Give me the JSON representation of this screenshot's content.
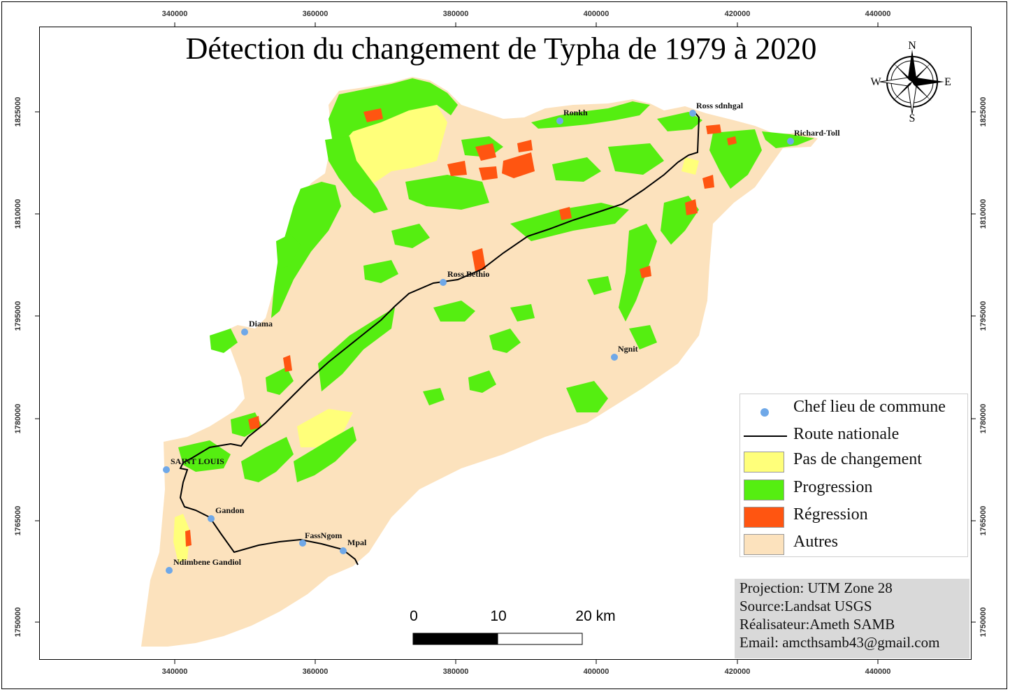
{
  "title": "Détection du changement de Typha de 1979 à 2020",
  "x_ticks": [
    "340000",
    "360000",
    "380000",
    "400000",
    "420000",
    "440000"
  ],
  "y_ticks": [
    "1825000",
    "1810000",
    "1795000",
    "1780000",
    "1765000",
    "1750000"
  ],
  "colors": {
    "pas_de_changement": "#ffff7a",
    "progression": "#55ee11",
    "regression": "#ff5511",
    "autres": "#fce2bd",
    "commune": "#6fa8e8",
    "route": "#000000"
  },
  "towns": [
    {
      "name": "Ronkh"
    },
    {
      "name": "Ross sdnhgal"
    },
    {
      "name": "Richard-Toll"
    },
    {
      "name": "Ross Bethio"
    },
    {
      "name": "Diama"
    },
    {
      "name": "Ngnit"
    },
    {
      "name": "SAINT LOUIS"
    },
    {
      "name": "Gandon"
    },
    {
      "name": "FassNgom"
    },
    {
      "name": "Mpal"
    },
    {
      "name": "Ndimbene Gandiol"
    }
  ],
  "compass": {
    "n": "N",
    "s": "S",
    "e": "E",
    "w": "W"
  },
  "legend": {
    "chef_lieu": "Chef lieu de commune",
    "route": "Route nationale",
    "pas_de_changement": "Pas de changement",
    "progression": "Progression",
    "regression": "Régression",
    "autres": "Autres"
  },
  "info": {
    "projection": "Projection: UTM Zone 28",
    "source": "Source:Landsat USGS",
    "realisateur": "Réalisateur:Ameth SAMB",
    "email": "Email: amcthsamb43@gmail.com"
  },
  "scale": {
    "zero": "0",
    "ten": "10",
    "twenty": "20 km"
  }
}
